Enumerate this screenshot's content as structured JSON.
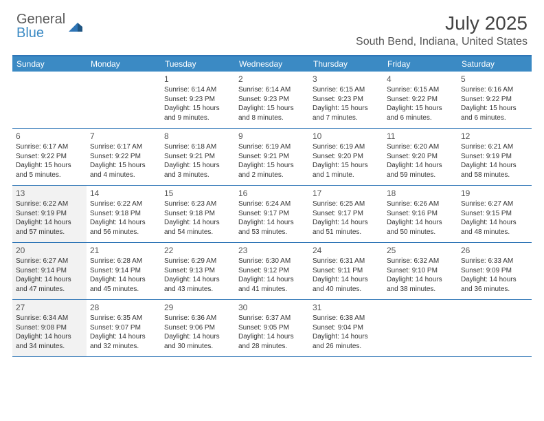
{
  "logo": {
    "general": "General",
    "blue": "Blue"
  },
  "title": "July 2025",
  "location": "South Bend, Indiana, United States",
  "colors": {
    "headerBg": "#3b8ac4",
    "border": "#2e75b6",
    "shaded": "#f2f2f2",
    "text": "#333333"
  },
  "dayNames": [
    "Sunday",
    "Monday",
    "Tuesday",
    "Wednesday",
    "Thursday",
    "Friday",
    "Saturday"
  ],
  "weeks": [
    [
      null,
      null,
      {
        "n": "1",
        "sr": "Sunrise: 6:14 AM",
        "ss": "Sunset: 9:23 PM",
        "dl": "Daylight: 15 hours and 9 minutes."
      },
      {
        "n": "2",
        "sr": "Sunrise: 6:14 AM",
        "ss": "Sunset: 9:23 PM",
        "dl": "Daylight: 15 hours and 8 minutes."
      },
      {
        "n": "3",
        "sr": "Sunrise: 6:15 AM",
        "ss": "Sunset: 9:23 PM",
        "dl": "Daylight: 15 hours and 7 minutes."
      },
      {
        "n": "4",
        "sr": "Sunrise: 6:15 AM",
        "ss": "Sunset: 9:22 PM",
        "dl": "Daylight: 15 hours and 6 minutes."
      },
      {
        "n": "5",
        "sr": "Sunrise: 6:16 AM",
        "ss": "Sunset: 9:22 PM",
        "dl": "Daylight: 15 hours and 6 minutes."
      }
    ],
    [
      {
        "n": "6",
        "sr": "Sunrise: 6:17 AM",
        "ss": "Sunset: 9:22 PM",
        "dl": "Daylight: 15 hours and 5 minutes."
      },
      {
        "n": "7",
        "sr": "Sunrise: 6:17 AM",
        "ss": "Sunset: 9:22 PM",
        "dl": "Daylight: 15 hours and 4 minutes."
      },
      {
        "n": "8",
        "sr": "Sunrise: 6:18 AM",
        "ss": "Sunset: 9:21 PM",
        "dl": "Daylight: 15 hours and 3 minutes."
      },
      {
        "n": "9",
        "sr": "Sunrise: 6:19 AM",
        "ss": "Sunset: 9:21 PM",
        "dl": "Daylight: 15 hours and 2 minutes."
      },
      {
        "n": "10",
        "sr": "Sunrise: 6:19 AM",
        "ss": "Sunset: 9:20 PM",
        "dl": "Daylight: 15 hours and 1 minute."
      },
      {
        "n": "11",
        "sr": "Sunrise: 6:20 AM",
        "ss": "Sunset: 9:20 PM",
        "dl": "Daylight: 14 hours and 59 minutes."
      },
      {
        "n": "12",
        "sr": "Sunrise: 6:21 AM",
        "ss": "Sunset: 9:19 PM",
        "dl": "Daylight: 14 hours and 58 minutes."
      }
    ],
    [
      {
        "n": "13",
        "sr": "Sunrise: 6:22 AM",
        "ss": "Sunset: 9:19 PM",
        "dl": "Daylight: 14 hours and 57 minutes.",
        "shaded": true
      },
      {
        "n": "14",
        "sr": "Sunrise: 6:22 AM",
        "ss": "Sunset: 9:18 PM",
        "dl": "Daylight: 14 hours and 56 minutes."
      },
      {
        "n": "15",
        "sr": "Sunrise: 6:23 AM",
        "ss": "Sunset: 9:18 PM",
        "dl": "Daylight: 14 hours and 54 minutes."
      },
      {
        "n": "16",
        "sr": "Sunrise: 6:24 AM",
        "ss": "Sunset: 9:17 PM",
        "dl": "Daylight: 14 hours and 53 minutes."
      },
      {
        "n": "17",
        "sr": "Sunrise: 6:25 AM",
        "ss": "Sunset: 9:17 PM",
        "dl": "Daylight: 14 hours and 51 minutes."
      },
      {
        "n": "18",
        "sr": "Sunrise: 6:26 AM",
        "ss": "Sunset: 9:16 PM",
        "dl": "Daylight: 14 hours and 50 minutes."
      },
      {
        "n": "19",
        "sr": "Sunrise: 6:27 AM",
        "ss": "Sunset: 9:15 PM",
        "dl": "Daylight: 14 hours and 48 minutes."
      }
    ],
    [
      {
        "n": "20",
        "sr": "Sunrise: 6:27 AM",
        "ss": "Sunset: 9:14 PM",
        "dl": "Daylight: 14 hours and 47 minutes.",
        "shaded": true
      },
      {
        "n": "21",
        "sr": "Sunrise: 6:28 AM",
        "ss": "Sunset: 9:14 PM",
        "dl": "Daylight: 14 hours and 45 minutes."
      },
      {
        "n": "22",
        "sr": "Sunrise: 6:29 AM",
        "ss": "Sunset: 9:13 PM",
        "dl": "Daylight: 14 hours and 43 minutes."
      },
      {
        "n": "23",
        "sr": "Sunrise: 6:30 AM",
        "ss": "Sunset: 9:12 PM",
        "dl": "Daylight: 14 hours and 41 minutes."
      },
      {
        "n": "24",
        "sr": "Sunrise: 6:31 AM",
        "ss": "Sunset: 9:11 PM",
        "dl": "Daylight: 14 hours and 40 minutes."
      },
      {
        "n": "25",
        "sr": "Sunrise: 6:32 AM",
        "ss": "Sunset: 9:10 PM",
        "dl": "Daylight: 14 hours and 38 minutes."
      },
      {
        "n": "26",
        "sr": "Sunrise: 6:33 AM",
        "ss": "Sunset: 9:09 PM",
        "dl": "Daylight: 14 hours and 36 minutes."
      }
    ],
    [
      {
        "n": "27",
        "sr": "Sunrise: 6:34 AM",
        "ss": "Sunset: 9:08 PM",
        "dl": "Daylight: 14 hours and 34 minutes.",
        "shaded": true
      },
      {
        "n": "28",
        "sr": "Sunrise: 6:35 AM",
        "ss": "Sunset: 9:07 PM",
        "dl": "Daylight: 14 hours and 32 minutes."
      },
      {
        "n": "29",
        "sr": "Sunrise: 6:36 AM",
        "ss": "Sunset: 9:06 PM",
        "dl": "Daylight: 14 hours and 30 minutes."
      },
      {
        "n": "30",
        "sr": "Sunrise: 6:37 AM",
        "ss": "Sunset: 9:05 PM",
        "dl": "Daylight: 14 hours and 28 minutes."
      },
      {
        "n": "31",
        "sr": "Sunrise: 6:38 AM",
        "ss": "Sunset: 9:04 PM",
        "dl": "Daylight: 14 hours and 26 minutes."
      },
      null,
      null
    ]
  ]
}
